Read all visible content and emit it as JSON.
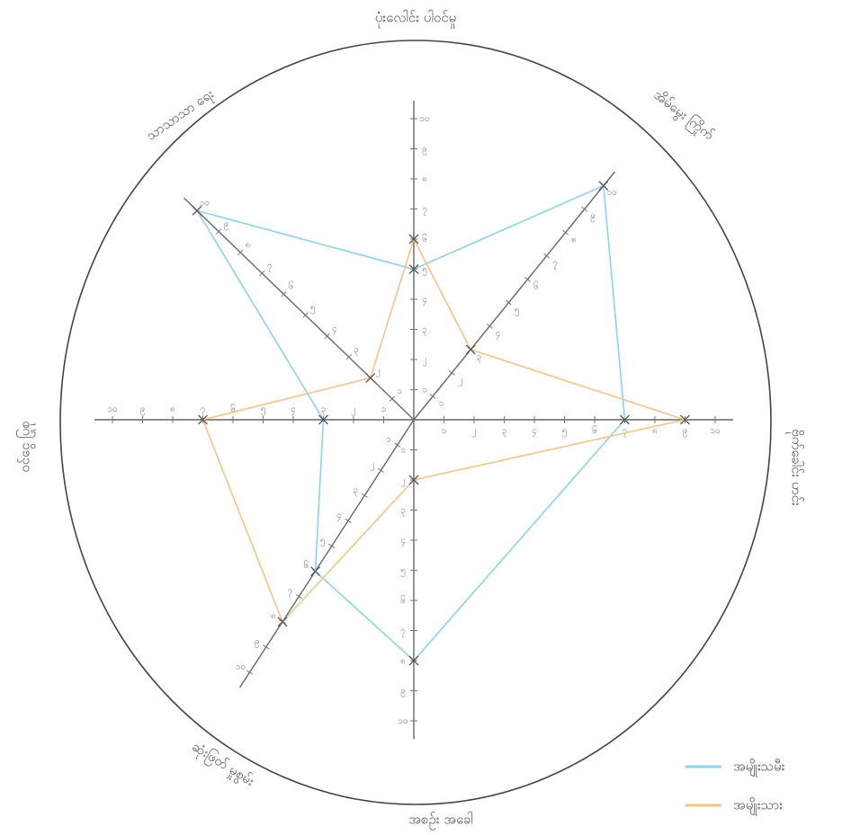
{
  "chart_data": {
    "type": "radar",
    "categories": [
      "ပုံးလေါင်း ပါဝင်မှု",
      "အိမ်မွေး ကြိုက်",
      "ဗိုက်ခေါင်း ဟင်း",
      "အစဉ်း အခေါ",
      "ဆုံးဖြတ် မှုစွမ်း",
      "ဝင်ငွေ ပြုစု",
      "သာသာသာ ရေး"
    ],
    "rlim": [
      0,
      10
    ],
    "rticks": [
      {
        "value": 1,
        "label": "၁"
      },
      {
        "value": 2,
        "label": "၂"
      },
      {
        "value": 3,
        "label": "၃"
      },
      {
        "value": 4,
        "label": "၄"
      },
      {
        "value": 5,
        "label": "၅"
      },
      {
        "value": 6,
        "label": "၆"
      },
      {
        "value": 7,
        "label": "၇"
      },
      {
        "value": 8,
        "label": "၈"
      },
      {
        "value": 9,
        "label": "၉"
      },
      {
        "value": 10,
        "label": "၁၀"
      }
    ],
    "series": [
      {
        "name": "အမျိုးသမီး",
        "color": "#8ed2e8",
        "values": [
          5,
          10,
          7,
          8,
          6,
          3,
          10
        ]
      },
      {
        "name": "အမျိုးသား",
        "color": "#f0c48c",
        "values": [
          6,
          3,
          9,
          2,
          8,
          7,
          2
        ]
      }
    ],
    "legend": "lower right"
  }
}
